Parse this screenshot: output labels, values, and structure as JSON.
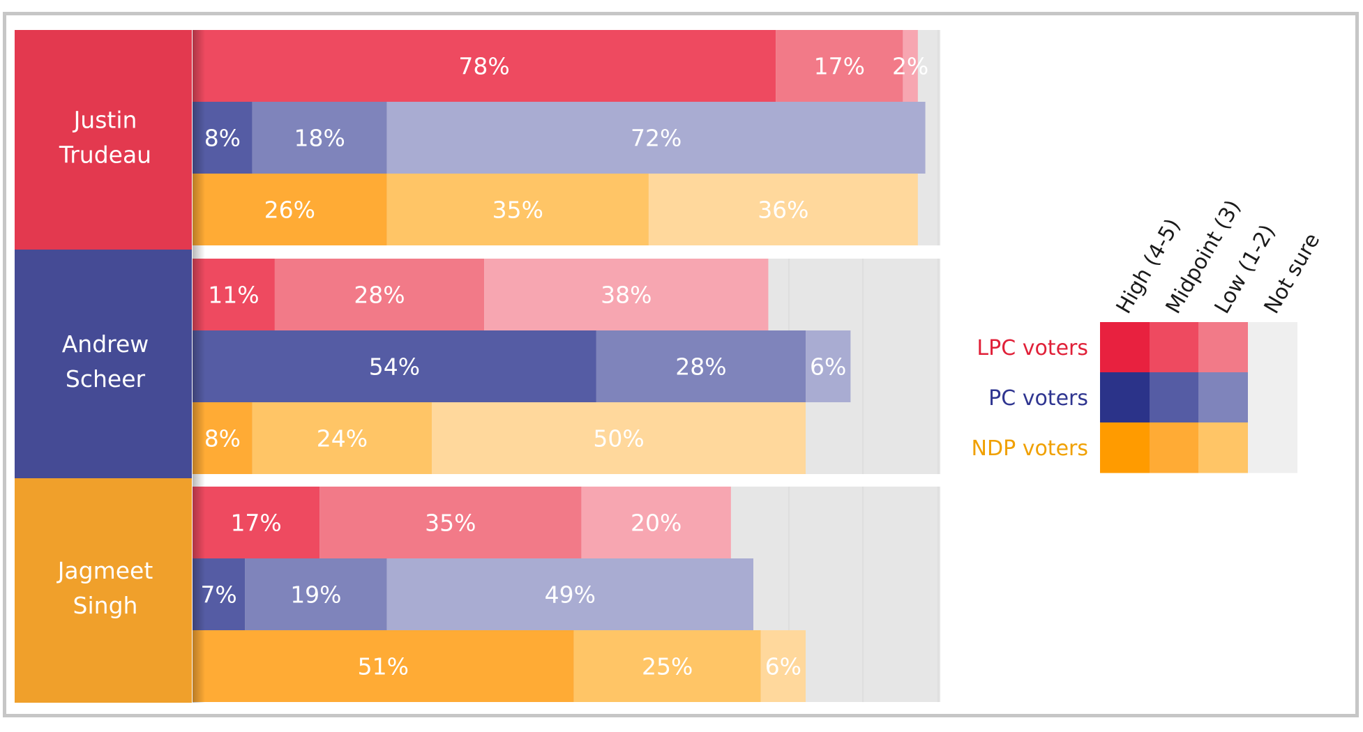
{
  "colors": {
    "background": "#ffffff",
    "frame": "#c6c6c6",
    "track": "#e6e6e6",
    "label_text": "#ffffff",
    "candidate_panels": [
      "#e3394f",
      "#454b95",
      "#f0a02b"
    ],
    "groups": {
      "LPC": [
        "#ee4a60",
        "#f27a88",
        "#f7a6b1"
      ],
      "PC": [
        "#555ca4",
        "#7f84bb",
        "#a9acd2"
      ],
      "NDP": [
        "#ffab35",
        "#ffc566",
        "#ffd89c"
      ]
    },
    "legend_swatches": {
      "LPC": [
        "#e8213f",
        "#ee4a60",
        "#f27a88"
      ],
      "PC": [
        "#2b3389",
        "#555ca4",
        "#7f84bb"
      ],
      "NDP": [
        "#ff9b00",
        "#ffab35",
        "#ffc566"
      ],
      "not_sure": "#efefef"
    },
    "legend_text": {
      "LPC": "#e02038",
      "PC": "#2f3590",
      "NDP": "#f0a000"
    }
  },
  "chart_data": {
    "type": "bar",
    "orientation": "horizontal",
    "stacked": true,
    "xlim": [
      0,
      100
    ],
    "unit": "%",
    "segment_order": [
      "High (4-5)",
      "Midpoint (3)",
      "Low (1-2)",
      "Not sure"
    ],
    "groups": [
      "LPC voters",
      "PC voters",
      "NDP voters"
    ],
    "candidates": [
      {
        "name_lines": [
          "Justin",
          "Trudeau"
        ],
        "rows": [
          {
            "group": "LPC",
            "values": [
              78,
              17,
              2
            ]
          },
          {
            "group": "PC",
            "values": [
              8,
              18,
              72
            ]
          },
          {
            "group": "NDP",
            "values": [
              26,
              35,
              36
            ]
          }
        ]
      },
      {
        "name_lines": [
          "Andrew",
          "Scheer"
        ],
        "rows": [
          {
            "group": "LPC",
            "values": [
              11,
              28,
              38
            ]
          },
          {
            "group": "PC",
            "values": [
              54,
              28,
              6
            ]
          },
          {
            "group": "NDP",
            "values": [
              8,
              24,
              50
            ]
          }
        ]
      },
      {
        "name_lines": [
          "Jagmeet",
          "Singh"
        ],
        "rows": [
          {
            "group": "LPC",
            "values": [
              17,
              35,
              20
            ]
          },
          {
            "group": "PC",
            "values": [
              7,
              19,
              49
            ]
          },
          {
            "group": "NDP",
            "values": [
              51,
              25,
              6
            ]
          }
        ]
      }
    ],
    "legend": {
      "placement": "right",
      "column_headers": [
        "High (4-5)",
        "Midpoint (3)",
        "Low (1-2)",
        "Not sure"
      ],
      "row_labels": [
        {
          "key": "LPC",
          "label": "LPC voters"
        },
        {
          "key": "PC",
          "label": "PC voters"
        },
        {
          "key": "NDP",
          "label": "NDP voters"
        }
      ]
    }
  }
}
